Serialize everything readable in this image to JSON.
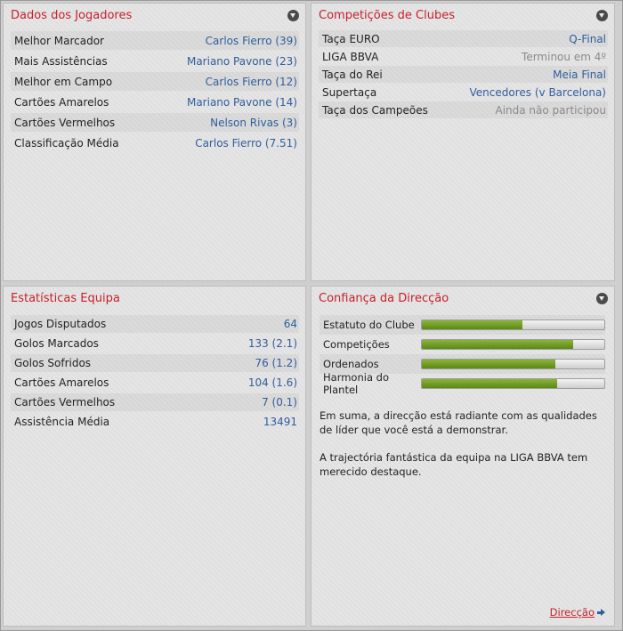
{
  "colors": {
    "title": "#c8202a",
    "value_link": "#2f5e9c",
    "muted": "#8a8a8a",
    "bar_fill": "#6b9a22"
  },
  "player_data": {
    "title": "Dados dos Jogadores",
    "rows": [
      {
        "label": "Melhor Marcador",
        "value": "Carlos Fierro (39)"
      },
      {
        "label": "Mais Assistências",
        "value": "Mariano Pavone (23)"
      },
      {
        "label": "Melhor em Campo",
        "value": "Carlos Fierro (12)"
      },
      {
        "label": "Cartões Amarelos",
        "value": "Mariano Pavone (14)"
      },
      {
        "label": "Cartões Vermelhos",
        "value": "Nelson Rivas (3)"
      },
      {
        "label": "Classificação Média",
        "value": "Carlos Fierro (7.51)"
      }
    ]
  },
  "club_competitions": {
    "title": "Competições de Clubes",
    "rows": [
      {
        "label": "Taça EURO",
        "value": "Q-Final"
      },
      {
        "label": "LIGA BBVA",
        "value": "Terminou em 4º"
      },
      {
        "label": "Taça do Rei",
        "value": "Meia Final"
      },
      {
        "label": "Supertaça",
        "value": "Vencedores (v Barcelona)"
      },
      {
        "label": "Taça dos Campeões",
        "value": "Ainda não participou"
      }
    ]
  },
  "team_stats": {
    "title": "Estatísticas Equipa",
    "rows": [
      {
        "label": "Jogos Disputados",
        "value": "64"
      },
      {
        "label": "Golos Marcados",
        "value": "133 (2.1)"
      },
      {
        "label": "Golos Sofridos",
        "value": "76 (1.2)"
      },
      {
        "label": "Cartões Amarelos",
        "value": "104 (1.6)"
      },
      {
        "label": "Cartões Vermelhos",
        "value": "7 (0.1)"
      },
      {
        "label": "Assistência Média",
        "value": "13491"
      }
    ]
  },
  "board_confidence": {
    "title": "Confiança da Direcção",
    "bars": [
      {
        "label": "Estatuto do Clube",
        "fraction": 0.55
      },
      {
        "label": "Competições",
        "fraction": 0.83
      },
      {
        "label": "Ordenados",
        "fraction": 0.73
      },
      {
        "label": "Harmonia do Plantel",
        "fraction": 0.74
      }
    ],
    "paragraph_1": "Em suma, a direcção está radiante com as qualidades de líder que você está a demonstrar.",
    "paragraph_2": "A trajectória fantástica da equipa na LIGA BBVA tem merecido destaque.",
    "link_label": "Direcção"
  }
}
